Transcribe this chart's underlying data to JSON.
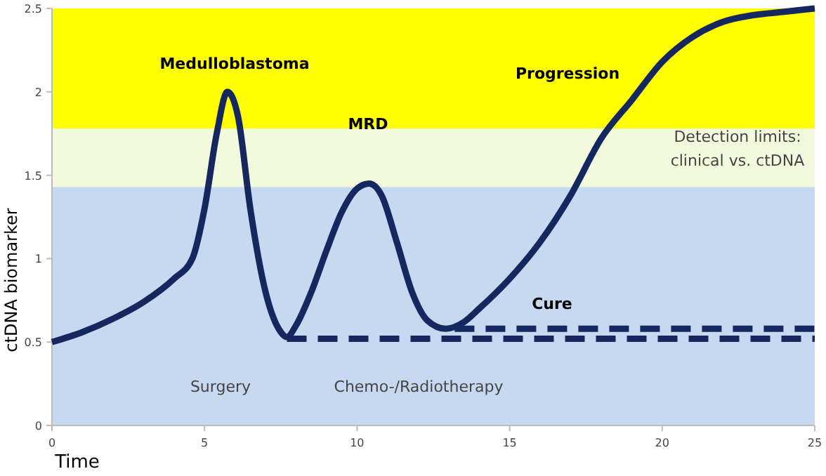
{
  "chart_data": {
    "type": "line",
    "xlabel": "Time",
    "ylabel": "ctDNA biomarker",
    "xlim": [
      0,
      25
    ],
    "ylim": [
      0,
      2.5
    ],
    "xticks": [
      0,
      5,
      10,
      15,
      20,
      25
    ],
    "yticks": [
      0,
      0.5,
      1,
      1.5,
      2,
      2.5
    ],
    "grid": false,
    "bands": [
      {
        "axis": "y",
        "from": 0,
        "to": 1.43,
        "color": "#c6d9f1"
      },
      {
        "axis": "y",
        "from": 1.43,
        "to": 1.78,
        "color": "#f3f9dc"
      },
      {
        "axis": "y",
        "from": 1.78,
        "to": 2.5,
        "color": "#ffff00"
      }
    ],
    "series": [
      {
        "color": "#14275e",
        "line_style": "solid",
        "x": [
          0,
          1,
          2,
          3,
          4,
          4.6,
          5,
          5.4,
          5.75,
          6.1,
          6.5,
          7,
          7.5,
          7.7,
          8,
          8.5,
          9,
          9.5,
          10,
          10.4,
          10.8,
          11.3,
          11.8,
          12.3,
          12.9,
          13.5,
          14,
          15,
          16,
          17,
          18,
          19,
          20,
          21,
          22,
          23,
          24,
          25
        ],
        "values": [
          0.5,
          0.56,
          0.64,
          0.74,
          0.88,
          1.0,
          1.3,
          1.75,
          2.0,
          1.85,
          1.3,
          0.8,
          0.56,
          0.53,
          0.6,
          0.8,
          1.05,
          1.28,
          1.42,
          1.45,
          1.38,
          1.1,
          0.8,
          0.63,
          0.58,
          0.62,
          0.7,
          0.88,
          1.1,
          1.38,
          1.72,
          1.95,
          2.18,
          2.33,
          2.42,
          2.46,
          2.48,
          2.5
        ]
      },
      {
        "color": "#14275e",
        "line_style": "dashed",
        "x": [
          7.7,
          25
        ],
        "values": [
          0.52,
          0.52
        ]
      },
      {
        "color": "#14275e",
        "line_style": "dashed",
        "x": [
          13.2,
          25
        ],
        "values": [
          0.58,
          0.58
        ]
      }
    ],
    "annotations": [
      "Medulloblastoma",
      "MRD",
      "Progression",
      "Cure",
      "Detection limits:\nclinical vs. ctDNA",
      "Surgery",
      "Chemo-/Radiotherapy"
    ]
  }
}
